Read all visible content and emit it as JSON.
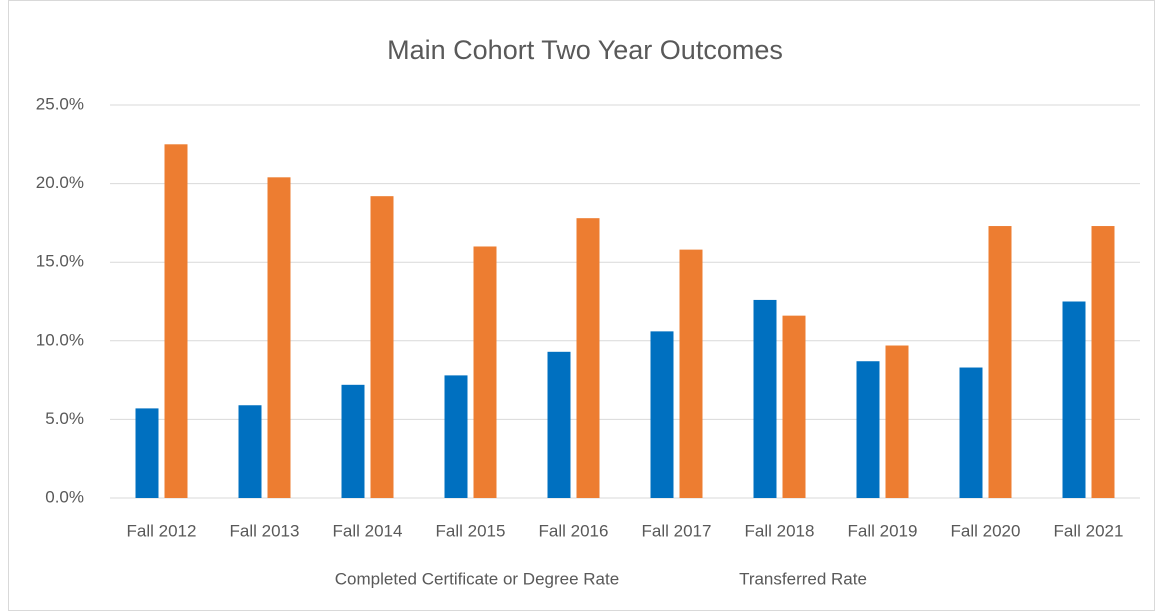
{
  "chart_data": {
    "type": "bar",
    "title": "Main Cohort Two Year Outcomes",
    "categories": [
      "Fall 2012",
      "Fall 2013",
      "Fall 2014",
      "Fall 2015",
      "Fall 2016",
      "Fall 2017",
      "Fall 2018",
      "Fall 2019",
      "Fall 2020",
      "Fall 2021"
    ],
    "series": [
      {
        "name": "Completed Certificate or Degree Rate",
        "color": "#0070c0",
        "values": [
          5.7,
          5.9,
          7.2,
          7.8,
          9.3,
          10.6,
          12.6,
          8.7,
          8.3,
          12.5
        ]
      },
      {
        "name": "Transferred Rate",
        "color": "#ed7d31",
        "values": [
          22.5,
          20.4,
          19.2,
          16.0,
          17.8,
          15.8,
          11.6,
          9.7,
          17.3,
          17.3
        ]
      }
    ],
    "ylim": [
      0,
      25
    ],
    "yticks": [
      {
        "value": 0,
        "label": "0.0%"
      },
      {
        "value": 5,
        "label": "5.0%"
      },
      {
        "value": 10,
        "label": "10.0%"
      },
      {
        "value": 15,
        "label": "15.0%"
      },
      {
        "value": 20,
        "label": "20.0%"
      },
      {
        "value": 25,
        "label": "25.0%"
      }
    ],
    "grid": true,
    "legend": "bottom"
  }
}
